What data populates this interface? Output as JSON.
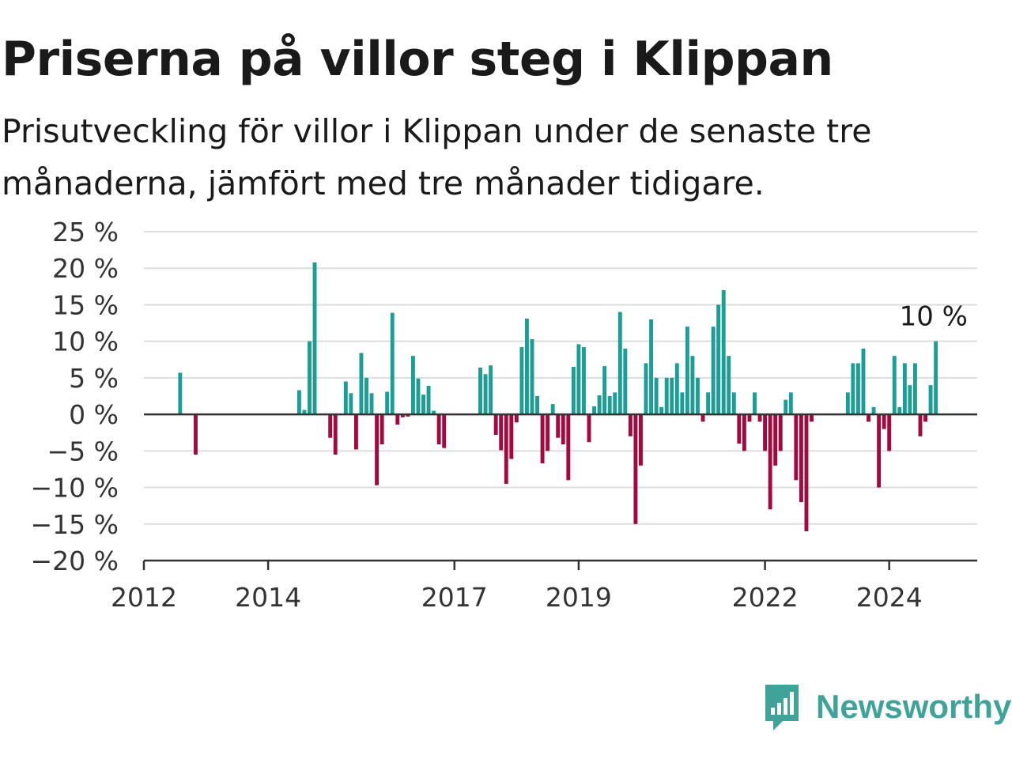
{
  "title": "Priserna på villor steg i Klippan",
  "subtitle": "Prisutveckling för villor i Klippan under de senaste tre månaderna, jämfört med tre månader tidigare.",
  "brand": {
    "name": "Newsworthy",
    "icon": "newsworthy-bar-chart-logo-icon"
  },
  "colors": {
    "positive": "#1a9e96",
    "negative": "#a3093e",
    "grid": "#dddddd",
    "axis": "#333333",
    "brand": "#3fa39a"
  },
  "chart_data": {
    "type": "bar",
    "title": "Priserna på villor steg i Klippan",
    "xlabel": "",
    "ylabel": "",
    "ylim": [
      -20,
      25
    ],
    "xlim": [
      "2012-01",
      "2025-06"
    ],
    "y_ticks": [
      25,
      20,
      15,
      10,
      5,
      0,
      -5,
      -10,
      -15,
      -20
    ],
    "y_tick_labels": [
      "25 %",
      "20 %",
      "15 %",
      "10 %",
      "5 %",
      "0 %",
      "−5 %",
      "−10 %",
      "−15 %",
      "−20 %"
    ],
    "x_tick_labels": [
      "2012",
      "2014",
      "2017",
      "2019",
      "2022",
      "2024"
    ],
    "x_tick_months": [
      "2012-01",
      "2014-01",
      "2017-01",
      "2019-01",
      "2022-01",
      "2024-01"
    ],
    "grid": true,
    "annotation": "10 %",
    "annotation_month": "2024-10",
    "unit": "%",
    "points": [
      [
        "2012-08",
        5.7
      ],
      [
        "2012-11",
        -5.5
      ],
      [
        "2014-07",
        3.3
      ],
      [
        "2014-08",
        0.6
      ],
      [
        "2014-09",
        10
      ],
      [
        "2014-10",
        20.8
      ],
      [
        "2015-01",
        -3.2
      ],
      [
        "2015-02",
        -5.5
      ],
      [
        "2015-04",
        4.5
      ],
      [
        "2015-05",
        2.9
      ],
      [
        "2015-06",
        -4.8
      ],
      [
        "2015-07",
        8.4
      ],
      [
        "2015-08",
        5
      ],
      [
        "2015-09",
        2.9
      ],
      [
        "2015-10",
        -9.7
      ],
      [
        "2015-11",
        -4.1
      ],
      [
        "2015-12",
        3.1
      ],
      [
        "2016-01",
        13.9
      ],
      [
        "2016-02",
        -1.4
      ],
      [
        "2016-03",
        -0.4
      ],
      [
        "2016-04",
        -0.3
      ],
      [
        "2016-05",
        8
      ],
      [
        "2016-06",
        4.9
      ],
      [
        "2016-07",
        2.7
      ],
      [
        "2016-08",
        3.9
      ],
      [
        "2016-09",
        0.5
      ],
      [
        "2016-10",
        -4.1
      ],
      [
        "2016-11",
        -4.6
      ],
      [
        "2017-06",
        6.4
      ],
      [
        "2017-07",
        5.5
      ],
      [
        "2017-08",
        6.7
      ],
      [
        "2017-09",
        -2.8
      ],
      [
        "2017-10",
        -4.9
      ],
      [
        "2017-11",
        -9.5
      ],
      [
        "2017-12",
        -6.1
      ],
      [
        "2018-01",
        -1.1
      ],
      [
        "2018-02",
        9.2
      ],
      [
        "2018-03",
        13.1
      ],
      [
        "2018-04",
        10.3
      ],
      [
        "2018-05",
        2.5
      ],
      [
        "2018-06",
        -6.7
      ],
      [
        "2018-07",
        -5
      ],
      [
        "2018-08",
        1.4
      ],
      [
        "2018-09",
        -3.2
      ],
      [
        "2018-10",
        -4.1
      ],
      [
        "2018-11",
        -9
      ],
      [
        "2018-12",
        6.5
      ],
      [
        "2019-01",
        9.6
      ],
      [
        "2019-02",
        9.2
      ],
      [
        "2019-03",
        -3.8
      ],
      [
        "2019-04",
        1.1
      ],
      [
        "2019-05",
        2.6
      ],
      [
        "2019-06",
        6.6
      ],
      [
        "2019-07",
        2.5
      ],
      [
        "2019-08",
        3
      ],
      [
        "2019-09",
        14
      ],
      [
        "2019-10",
        9
      ],
      [
        "2019-11",
        -3
      ],
      [
        "2019-12",
        -15
      ],
      [
        "2020-01",
        -7
      ],
      [
        "2020-02",
        7
      ],
      [
        "2020-03",
        13
      ],
      [
        "2020-04",
        5
      ],
      [
        "2020-05",
        1
      ],
      [
        "2020-06",
        5
      ],
      [
        "2020-07",
        5
      ],
      [
        "2020-08",
        7
      ],
      [
        "2020-09",
        3
      ],
      [
        "2020-10",
        12
      ],
      [
        "2020-11",
        8
      ],
      [
        "2020-12",
        5
      ],
      [
        "2021-01",
        -1
      ],
      [
        "2021-02",
        3
      ],
      [
        "2021-03",
        12
      ],
      [
        "2021-04",
        15
      ],
      [
        "2021-05",
        17
      ],
      [
        "2021-06",
        8
      ],
      [
        "2021-07",
        3
      ],
      [
        "2021-08",
        -4
      ],
      [
        "2021-09",
        -5
      ],
      [
        "2021-10",
        -1
      ],
      [
        "2021-11",
        3
      ],
      [
        "2021-12",
        -1
      ],
      [
        "2022-01",
        -5
      ],
      [
        "2022-02",
        -13
      ],
      [
        "2022-03",
        -7
      ],
      [
        "2022-04",
        -5
      ],
      [
        "2022-05",
        2
      ],
      [
        "2022-06",
        3
      ],
      [
        "2022-07",
        -9
      ],
      [
        "2022-08",
        -12
      ],
      [
        "2022-09",
        -16
      ],
      [
        "2022-10",
        -1
      ],
      [
        "2023-05",
        3
      ],
      [
        "2023-06",
        7
      ],
      [
        "2023-07",
        7
      ],
      [
        "2023-08",
        9
      ],
      [
        "2023-09",
        -1
      ],
      [
        "2023-10",
        1
      ],
      [
        "2023-11",
        -10
      ],
      [
        "2023-12",
        -2
      ],
      [
        "2024-01",
        -5
      ],
      [
        "2024-02",
        8
      ],
      [
        "2024-03",
        1
      ],
      [
        "2024-04",
        7
      ],
      [
        "2024-05",
        4
      ],
      [
        "2024-06",
        7
      ],
      [
        "2024-07",
        -3
      ],
      [
        "2024-08",
        -1
      ],
      [
        "2024-09",
        4
      ],
      [
        "2024-10",
        10
      ]
    ]
  }
}
